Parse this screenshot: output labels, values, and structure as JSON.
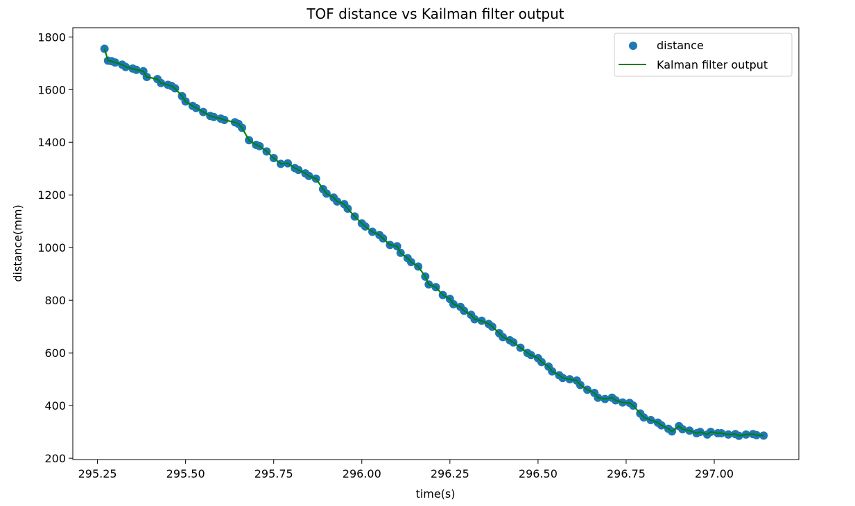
{
  "chart_data": {
    "type": "scatter",
    "title": "TOF distance vs Kailman filter output",
    "xlabel": "time(s)",
    "ylabel": "distance(mm)",
    "xlim": [
      295.18,
      297.24
    ],
    "ylim": [
      195,
      1835
    ],
    "xticks": [
      295.25,
      295.5,
      295.75,
      296.0,
      296.25,
      296.5,
      296.75,
      297.0
    ],
    "xtick_labels": [
      "295.25",
      "295.50",
      "295.75",
      "296.00",
      "296.25",
      "296.50",
      "296.75",
      "297.00"
    ],
    "yticks": [
      200,
      400,
      600,
      800,
      1000,
      1200,
      1400,
      1600,
      1800
    ],
    "ytick_labels": [
      "200",
      "400",
      "600",
      "800",
      "1000",
      "1200",
      "1400",
      "1600",
      "1800"
    ],
    "grid": false,
    "legend_position": "top-right",
    "series": [
      {
        "name": "distance",
        "kind": "scatter",
        "color": "#1f77b4",
        "x": [
          295.27,
          295.28,
          295.29,
          295.3,
          295.32,
          295.33,
          295.35,
          295.36,
          295.38,
          295.39,
          295.42,
          295.43,
          295.45,
          295.46,
          295.47,
          295.49,
          295.5,
          295.52,
          295.53,
          295.55,
          295.57,
          295.58,
          295.6,
          295.61,
          295.64,
          295.65,
          295.66,
          295.68,
          295.7,
          295.71,
          295.73,
          295.75,
          295.77,
          295.79,
          295.81,
          295.82,
          295.84,
          295.85,
          295.87,
          295.89,
          295.9,
          295.92,
          295.93,
          295.95,
          295.96,
          295.98,
          296.0,
          296.01,
          296.03,
          296.05,
          296.06,
          296.08,
          296.1,
          296.11,
          296.13,
          296.14,
          296.16,
          296.18,
          296.19,
          296.21,
          296.23,
          296.25,
          296.26,
          296.28,
          296.29,
          296.31,
          296.32,
          296.34,
          296.36,
          296.37,
          296.39,
          296.4,
          296.42,
          296.43,
          296.45,
          296.47,
          296.48,
          296.5,
          296.51,
          296.53,
          296.54,
          296.56,
          296.57,
          296.59,
          296.61,
          296.62,
          296.64,
          296.66,
          296.67,
          296.69,
          296.71,
          296.72,
          296.74,
          296.76,
          296.77,
          296.79,
          296.8,
          296.82,
          296.84,
          296.85,
          296.87,
          296.88,
          296.9,
          296.91,
          296.93,
          296.95,
          296.96,
          296.98,
          296.99,
          297.01,
          297.02,
          297.04,
          297.06,
          297.07,
          297.09,
          297.11,
          297.12,
          297.14
        ],
        "y": [
          1755,
          1710,
          1708,
          1703,
          1695,
          1686,
          1680,
          1675,
          1670,
          1648,
          1640,
          1625,
          1618,
          1614,
          1605,
          1575,
          1555,
          1538,
          1530,
          1515,
          1500,
          1496,
          1490,
          1485,
          1476,
          1470,
          1455,
          1408,
          1390,
          1385,
          1365,
          1340,
          1318,
          1320,
          1302,
          1295,
          1282,
          1272,
          1262,
          1222,
          1205,
          1190,
          1175,
          1165,
          1148,
          1118,
          1092,
          1080,
          1060,
          1048,
          1035,
          1010,
          1005,
          980,
          960,
          945,
          928,
          890,
          860,
          850,
          820,
          805,
          785,
          775,
          760,
          745,
          728,
          722,
          710,
          700,
          675,
          660,
          648,
          640,
          620,
          600,
          592,
          580,
          565,
          548,
          530,
          515,
          505,
          500,
          495,
          478,
          460,
          448,
          430,
          425,
          430,
          420,
          412,
          410,
          400,
          370,
          355,
          345,
          335,
          325,
          312,
          302,
          322,
          310,
          305,
          295,
          300,
          290,
          300,
          295,
          295,
          290,
          292,
          285,
          290,
          292,
          288,
          286
        ]
      },
      {
        "name": "Kalman filter output",
        "kind": "line",
        "color": "#008000"
      }
    ]
  }
}
